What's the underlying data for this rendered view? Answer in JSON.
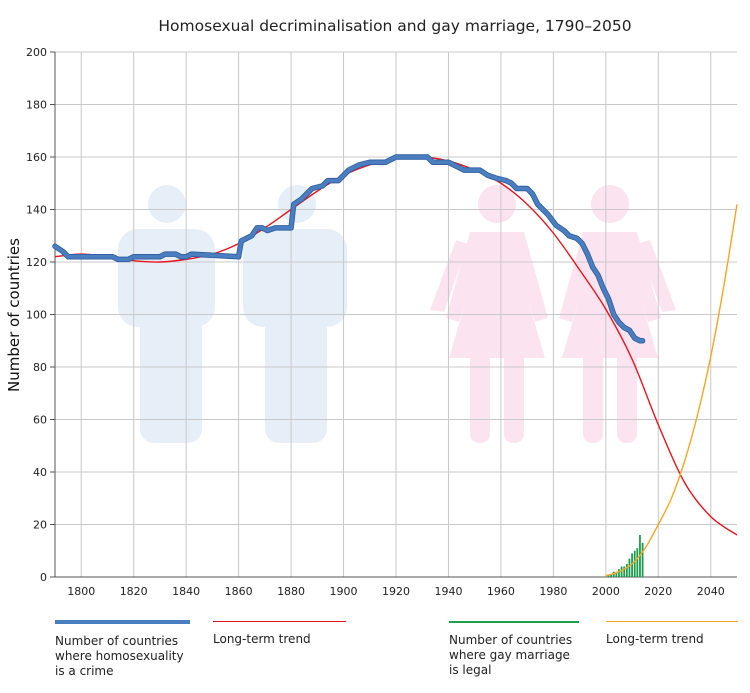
{
  "chart_data": {
    "type": "line",
    "title": "Homosexual decriminalisation and gay marriage, 1790–2050",
    "ylabel": "Number of countries",
    "xlabel": "",
    "xlim": [
      1790,
      2050
    ],
    "ylim": [
      0,
      200
    ],
    "x_ticks": [
      1800,
      1820,
      1840,
      1860,
      1880,
      1900,
      1920,
      1940,
      1960,
      1980,
      2000,
      2020,
      2040
    ],
    "y_ticks": [
      0,
      20,
      40,
      60,
      80,
      100,
      120,
      140,
      160,
      180,
      200
    ],
    "grid": true,
    "legend_position": "bottom",
    "colors": {
      "crime": "#4a7ec0",
      "crime_trend": "#e8141d",
      "marriage": "#1e9d4f",
      "marriage_trend": "#f6a623",
      "male_figures": "#e6eff8",
      "female_figures": "#fbe3ef"
    },
    "series": [
      {
        "name": "Number of countries where homosexuality is a crime",
        "kind": "step",
        "color": "#4a7ec0",
        "points": [
          [
            1790,
            126
          ],
          [
            1793,
            124
          ],
          [
            1795,
            122
          ],
          [
            1812,
            122
          ],
          [
            1814,
            121
          ],
          [
            1818,
            121
          ],
          [
            1820,
            122
          ],
          [
            1830,
            122
          ],
          [
            1832,
            123
          ],
          [
            1836,
            123
          ],
          [
            1838,
            122
          ],
          [
            1840,
            122
          ],
          [
            1842,
            123
          ],
          [
            1860,
            122
          ],
          [
            1861,
            128
          ],
          [
            1865,
            130
          ],
          [
            1867,
            133
          ],
          [
            1869,
            133
          ],
          [
            1871,
            132
          ],
          [
            1874,
            133
          ],
          [
            1880,
            133
          ],
          [
            1881,
            142
          ],
          [
            1884,
            144
          ],
          [
            1886,
            146
          ],
          [
            1888,
            148
          ],
          [
            1892,
            149
          ],
          [
            1894,
            151
          ],
          [
            1898,
            151
          ],
          [
            1900,
            153
          ],
          [
            1902,
            155
          ],
          [
            1906,
            157
          ],
          [
            1910,
            158
          ],
          [
            1913,
            158
          ],
          [
            1916,
            158
          ],
          [
            1918,
            159
          ],
          [
            1920,
            160
          ],
          [
            1932,
            160
          ],
          [
            1934,
            158
          ],
          [
            1940,
            158
          ],
          [
            1944,
            156
          ],
          [
            1946,
            155
          ],
          [
            1952,
            155
          ],
          [
            1955,
            153
          ],
          [
            1958,
            152
          ],
          [
            1962,
            151
          ],
          [
            1964,
            150
          ],
          [
            1966,
            148
          ],
          [
            1970,
            148
          ],
          [
            1972,
            146
          ],
          [
            1974,
            142
          ],
          [
            1976,
            140
          ],
          [
            1978,
            138
          ],
          [
            1981,
            134
          ],
          [
            1984,
            132
          ],
          [
            1986,
            130
          ],
          [
            1989,
            129
          ],
          [
            1991,
            127
          ],
          [
            1993,
            123
          ],
          [
            1995,
            118
          ],
          [
            1997,
            115
          ],
          [
            1999,
            110
          ],
          [
            2001,
            106
          ],
          [
            2003,
            100
          ],
          [
            2005,
            97
          ],
          [
            2007,
            95
          ],
          [
            2009,
            94
          ],
          [
            2011,
            91
          ],
          [
            2013,
            90
          ],
          [
            2014,
            90
          ]
        ]
      },
      {
        "name": "Long-term trend",
        "kind": "smooth",
        "color": "#e8141d",
        "points": [
          [
            1790,
            122
          ],
          [
            1800,
            123
          ],
          [
            1810,
            122
          ],
          [
            1820,
            120.5
          ],
          [
            1830,
            120
          ],
          [
            1840,
            121
          ],
          [
            1850,
            123
          ],
          [
            1860,
            127
          ],
          [
            1870,
            133
          ],
          [
            1880,
            140
          ],
          [
            1890,
            147
          ],
          [
            1900,
            153
          ],
          [
            1910,
            157
          ],
          [
            1920,
            159.5
          ],
          [
            1930,
            160
          ],
          [
            1940,
            158.5
          ],
          [
            1950,
            155
          ],
          [
            1960,
            150
          ],
          [
            1970,
            142
          ],
          [
            1980,
            131
          ],
          [
            1990,
            117
          ],
          [
            2000,
            102
          ],
          [
            2010,
            83
          ],
          [
            2020,
            58
          ],
          [
            2030,
            36
          ],
          [
            2040,
            23
          ],
          [
            2050,
            16
          ]
        ]
      },
      {
        "name": "Number of countries where gay marriage is legal",
        "kind": "bars",
        "color": "#1e9d4f",
        "points": [
          [
            2001,
            1
          ],
          [
            2002,
            1
          ],
          [
            2003,
            2
          ],
          [
            2004,
            2
          ],
          [
            2005,
            3
          ],
          [
            2006,
            4
          ],
          [
            2007,
            4
          ],
          [
            2008,
            5
          ],
          [
            2009,
            7
          ],
          [
            2010,
            9
          ],
          [
            2011,
            10
          ],
          [
            2012,
            11
          ],
          [
            2013,
            16
          ],
          [
            2014,
            13
          ]
        ]
      },
      {
        "name": "Long-term trend",
        "kind": "smooth",
        "color": "#f6a623",
        "points": [
          [
            2000,
            0.5
          ],
          [
            2005,
            2
          ],
          [
            2010,
            5
          ],
          [
            2015,
            11
          ],
          [
            2020,
            20
          ],
          [
            2025,
            30
          ],
          [
            2030,
            44
          ],
          [
            2035,
            62
          ],
          [
            2040,
            84
          ],
          [
            2045,
            111
          ],
          [
            2050,
            142
          ]
        ]
      }
    ]
  },
  "legend": [
    {
      "label": "Number of countries\nwhere homosexuality\nis a crime",
      "color": "#4a7ec0",
      "width": 4
    },
    {
      "label": "Long-term trend",
      "color": "#e8141d",
      "width": 1.5
    },
    {
      "label": "Number of countries\nwhere gay marriage\nis legal",
      "color": "#1e9d4f",
      "width": 2
    },
    {
      "label": "Long-term trend",
      "color": "#f6a623",
      "width": 1.5
    }
  ]
}
